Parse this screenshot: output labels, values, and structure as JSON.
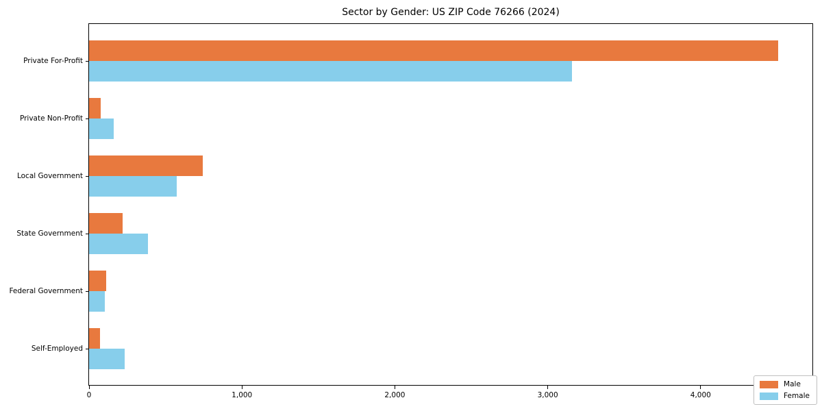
{
  "title": "Sector by Gender: US ZIP Code 76266 (2024)",
  "colors": {
    "male": "#e8793e",
    "female": "#87ceeb",
    "background": "#ffffff",
    "spine": "#000000"
  },
  "chart_data": {
    "type": "bar",
    "orientation": "horizontal",
    "title": "Sector by Gender: US ZIP Code 76266 (2024)",
    "categories": [
      "Private For-Profit",
      "Private Non-Profit",
      "Local Government",
      "State Government",
      "Federal Government",
      "Self-Employed"
    ],
    "series": [
      {
        "name": "Male",
        "color": "#e8793e",
        "values": [
          4505,
          75,
          745,
          220,
          110,
          70
        ]
      },
      {
        "name": "Female",
        "color": "#87ceeb",
        "values": [
          3160,
          160,
          575,
          385,
          105,
          235
        ]
      }
    ],
    "xlabel": "",
    "ylabel": "",
    "xlim": [
      0,
      4740
    ],
    "xticks": [
      0,
      1000,
      2000,
      3000,
      4000
    ],
    "xtick_labels": [
      "0",
      "1,000",
      "2,000",
      "3,000",
      "4,000"
    ],
    "grid": false,
    "legend": {
      "position": "lower right",
      "entries": [
        "Male",
        "Female"
      ]
    }
  }
}
